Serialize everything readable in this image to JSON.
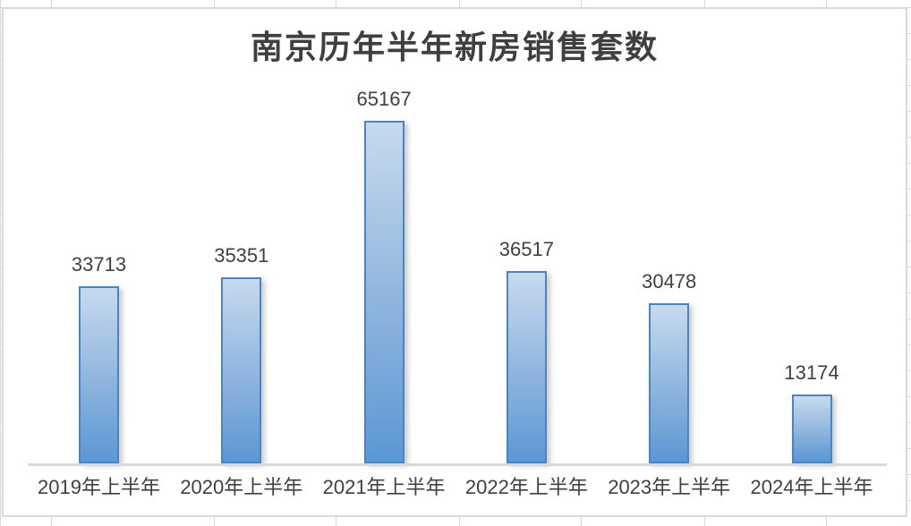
{
  "chart_data": {
    "type": "bar",
    "title": "南京历年半年新房销售套数",
    "categories": [
      "2019年上半年",
      "2020年上半年",
      "2021年上半年",
      "2022年上半年",
      "2023年上半年",
      "2024年上半年"
    ],
    "values": [
      33713,
      35351,
      65167,
      36517,
      30478,
      13174
    ],
    "data_labels": [
      "33713",
      "35351",
      "65167",
      "36517",
      "30478",
      "13174"
    ],
    "xlabel": "",
    "ylabel": "",
    "ylim": [
      0,
      65167
    ],
    "grid": false,
    "legend": "none",
    "y_axis_visible": false,
    "colors": {
      "bar_fill_top": "#c7daee",
      "bar_fill_bottom": "#5b97d5",
      "bar_border": "#4a84c4",
      "axis_line": "#d9d9d9",
      "chart_border": "#d9d9d9",
      "spreadsheet_gridline": "#d9d9d9",
      "text": "#404040",
      "title_text": "#3f3f3f"
    }
  }
}
